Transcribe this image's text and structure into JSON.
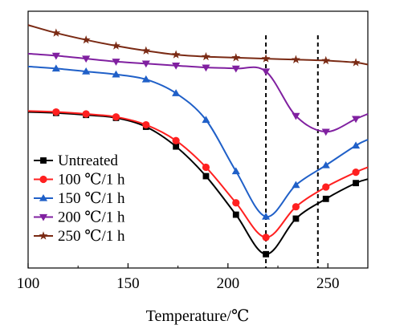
{
  "chart_data": {
    "type": "line",
    "xlabel": "Temperature/℃",
    "ylabel": "",
    "xlim": [
      100,
      270
    ],
    "x_ticks": [
      "100",
      "150",
      "200",
      "250"
    ],
    "y_ticks_labeled": false,
    "grid": false,
    "legend_position": "bottom-left",
    "reference_lines_x": [
      219,
      245
    ],
    "series": [
      {
        "name": "Untreated",
        "marker": "square",
        "color": "#000000",
        "x": [
          100,
          114,
          129,
          144,
          159,
          174,
          189,
          204,
          219,
          234,
          249,
          264,
          270
        ],
        "y": [
          0.79,
          0.785,
          0.775,
          0.76,
          0.715,
          0.615,
          0.465,
          0.27,
          0.07,
          0.25,
          0.35,
          0.43,
          0.45
        ]
      },
      {
        "name": "100 ℃/1 h",
        "marker": "circle",
        "color": "#ff2020",
        "x": [
          100,
          114,
          129,
          144,
          159,
          174,
          189,
          204,
          219,
          234,
          249,
          264,
          270
        ],
        "y": [
          0.795,
          0.79,
          0.78,
          0.765,
          0.725,
          0.645,
          0.51,
          0.33,
          0.155,
          0.31,
          0.41,
          0.485,
          0.51
        ]
      },
      {
        "name": "150 ℃/1 h",
        "marker": "triangle-up",
        "color": "#2060c8",
        "x": [
          100,
          114,
          129,
          144,
          159,
          174,
          189,
          204,
          219,
          234,
          249,
          264,
          270
        ],
        "y": [
          1.02,
          1.01,
          0.995,
          0.98,
          0.955,
          0.885,
          0.75,
          0.49,
          0.26,
          0.42,
          0.52,
          0.62,
          0.65
        ]
      },
      {
        "name": "200 ℃/1 h",
        "marker": "triangle-down",
        "color": "#8020a0",
        "x": [
          100,
          114,
          129,
          144,
          159,
          174,
          189,
          204,
          219,
          234,
          249,
          264,
          270
        ],
        "y": [
          1.085,
          1.075,
          1.06,
          1.045,
          1.035,
          1.025,
          1.015,
          1.01,
          0.995,
          0.77,
          0.69,
          0.755,
          0.78
        ]
      },
      {
        "name": "250 ℃/1 h",
        "marker": "star",
        "color": "#7a2a14",
        "x": [
          100,
          114,
          129,
          144,
          159,
          174,
          189,
          204,
          219,
          234,
          249,
          264,
          270
        ],
        "y": [
          1.23,
          1.19,
          1.155,
          1.125,
          1.1,
          1.08,
          1.07,
          1.065,
          1.06,
          1.055,
          1.05,
          1.04,
          1.03
        ]
      }
    ]
  }
}
